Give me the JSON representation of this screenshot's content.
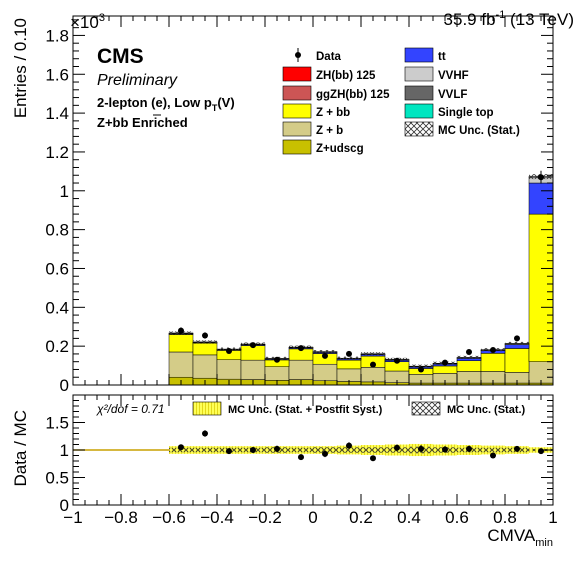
{
  "header": {
    "lumi": "35.9 fb",
    "lumi_sup": "-1",
    "energy": " (13 TeV)",
    "exponent_base": "×10",
    "exponent_power": "3"
  },
  "labels": {
    "cms": "CMS",
    "preliminary": "Preliminary",
    "channel_main": "2-lepton (e), Low p",
    "channel_sub": "T",
    "channel_tail": "(V)",
    "region": "Z+bb Enriched",
    "chi2_text": "χ²/dof = 0.71"
  },
  "colors": {
    "zh": "#ff0000",
    "ggzh": "#cc5555",
    "zbb": "#ffff00",
    "zb": "#d4cc88",
    "zudscg": "#c8c000",
    "ttbar": "#3344ff",
    "vvhf": "#cccccc",
    "vvlf": "#666666",
    "singletop": "#00e6c0",
    "band_yellow": "#ffff66"
  },
  "chart_data": [
    {
      "type": "bar",
      "subtype": "stacked histogram with data points",
      "xlabel": "CMVA",
      "xlabel_sub": "min",
      "ylabel": "Entries / 0.10",
      "xlim": [
        -1,
        1
      ],
      "ylim": [
        0,
        1900
      ],
      "y_unit_multiplier": 1000,
      "x_ticks": [
        "−1",
        "−0.8",
        "−0.6",
        "−0.4",
        "−0.2",
        "0",
        "0.2",
        "0.4",
        "0.6",
        "0.8",
        "1"
      ],
      "y_ticks": [
        "0",
        "0.2",
        "0.4",
        "0.6",
        "0.8",
        "1",
        "1.2",
        "1.4",
        "1.6",
        "1.8"
      ],
      "bin_edges": [
        -0.6,
        -0.5,
        -0.4,
        -0.3,
        -0.2,
        -0.1,
        0.0,
        0.1,
        0.2,
        0.3,
        0.4,
        0.5,
        0.6,
        0.7,
        0.8,
        0.9,
        1.0
      ],
      "stack_order": [
        "Z+udscg",
        "Z + b",
        "Z + bb",
        "tt",
        "VVHF",
        "VVLF",
        "Single top",
        "ZH(bb) 125",
        "ggZH(bb) 125"
      ],
      "series": [
        {
          "name": "Z+udscg",
          "color": "#c8c000",
          "values": [
            40,
            35,
            30,
            28,
            24,
            28,
            22,
            18,
            16,
            12,
            10,
            10,
            10,
            10,
            10,
            10
          ]
        },
        {
          "name": "Z + b",
          "color": "#d4cc88",
          "values": [
            130,
            120,
            100,
            100,
            70,
            100,
            85,
            65,
            75,
            60,
            45,
            50,
            60,
            60,
            55,
            110
          ]
        },
        {
          "name": "Z + bb",
          "color": "#ffff00",
          "values": [
            90,
            60,
            48,
            75,
            35,
            58,
            55,
            45,
            58,
            48,
            30,
            38,
            55,
            93,
            123,
            760
          ]
        },
        {
          "name": "tt",
          "color": "#3344ff",
          "values": [
            3,
            3,
            3,
            4,
            4,
            5,
            6,
            6,
            8,
            8,
            8,
            10,
            12,
            14,
            20,
            160
          ]
        },
        {
          "name": "VVHF",
          "color": "#cccccc",
          "values": [
            2,
            2,
            2,
            2,
            2,
            2,
            2,
            2,
            2,
            2,
            2,
            2,
            3,
            3,
            4,
            30
          ]
        },
        {
          "name": "VVLF",
          "color": "#666666",
          "values": [
            3,
            2,
            2,
            2,
            2,
            2,
            2,
            2,
            2,
            2,
            2,
            2,
            2,
            2,
            2,
            2
          ]
        },
        {
          "name": "Single top",
          "color": "#00e6c0",
          "values": [
            0,
            0,
            0,
            0,
            0,
            0,
            0,
            0,
            0,
            0,
            0,
            0,
            0,
            0,
            0,
            0
          ]
        },
        {
          "name": "ZH(bb) 125",
          "color": "#ff0000",
          "values": [
            0,
            0,
            0,
            0,
            0,
            0,
            0,
            0,
            0,
            0,
            0,
            0,
            0,
            0,
            0,
            1
          ]
        },
        {
          "name": "ggZH(bb) 125",
          "color": "#cc5555",
          "values": [
            0,
            0,
            0,
            0,
            0,
            0,
            0,
            0,
            0,
            0,
            0,
            0,
            0,
            0,
            0,
            0
          ]
        }
      ],
      "data_points": {
        "name": "Data",
        "x": [
          -0.55,
          -0.45,
          -0.35,
          -0.25,
          -0.15,
          -0.05,
          0.05,
          0.15,
          0.25,
          0.35,
          0.45,
          0.55,
          0.65,
          0.75,
          0.85,
          0.95
        ],
        "y": [
          280,
          255,
          175,
          205,
          130,
          190,
          150,
          160,
          105,
          125,
          80,
          115,
          170,
          180,
          240,
          1070
        ],
        "err": [
          17,
          16,
          13,
          14,
          11,
          14,
          12,
          13,
          10,
          11,
          9,
          11,
          13,
          13,
          15,
          33
        ]
      },
      "legend": [
        {
          "label": "Data",
          "kind": "marker"
        },
        {
          "label": "ZH(bb) 125",
          "kind": "fill",
          "color": "#ff0000"
        },
        {
          "label": "ggZH(bb) 125",
          "kind": "fill",
          "color": "#cc5555"
        },
        {
          "label": "Z + bb",
          "kind": "fill",
          "color": "#ffff00"
        },
        {
          "label": "Z + b",
          "kind": "fill",
          "color": "#d4cc88"
        },
        {
          "label": "Z+udscg",
          "kind": "fill",
          "color": "#c8c000"
        },
        {
          "label": "tt",
          "kind": "fill",
          "color": "#3344ff"
        },
        {
          "label": "VVHF",
          "kind": "fill",
          "color": "#cccccc"
        },
        {
          "label": "VVLF",
          "kind": "fill",
          "color": "#666666"
        },
        {
          "label": "Single top",
          "kind": "fill",
          "color": "#00e6c0"
        },
        {
          "label": "MC Unc. (Stat.)",
          "kind": "hatch"
        }
      ],
      "legend_placement": "top-right"
    },
    {
      "type": "scatter",
      "subtype": "ratio panel",
      "xlabel": "CMVA",
      "xlabel_sub": "min",
      "ylabel": "Data / MC",
      "xlim": [
        -1,
        1
      ],
      "ylim": [
        0,
        2
      ],
      "x_ticks": [
        "−1",
        "−0.8",
        "−0.6",
        "−0.4",
        "−0.2",
        "0",
        "0.2",
        "0.4",
        "0.6",
        "0.8",
        "1"
      ],
      "y_ticks": [
        "0",
        "0.5",
        "1",
        "1.5"
      ],
      "reference_line": 1,
      "ratio": {
        "x": [
          -0.55,
          -0.45,
          -0.35,
          -0.25,
          -0.15,
          -0.05,
          0.05,
          0.15,
          0.25,
          0.35,
          0.45,
          0.55,
          0.65,
          0.75,
          0.85,
          0.95
        ],
        "y": [
          1.05,
          1.3,
          0.98,
          1.0,
          1.02,
          0.87,
          0.93,
          1.08,
          0.85,
          1.04,
          1.02,
          1.01,
          1.02,
          0.9,
          1.02,
          0.98
        ],
        "err": [
          0.05,
          0.06,
          0.05,
          0.05,
          0.06,
          0.05,
          0.06,
          0.06,
          0.05,
          0.06,
          0.07,
          0.06,
          0.06,
          0.05,
          0.05,
          0.02
        ]
      },
      "syst_band_halfwidth": [
        0.07,
        0.07,
        0.07,
        0.07,
        0.07,
        0.07,
        0.07,
        0.08,
        0.09,
        0.1,
        0.11,
        0.1,
        0.09,
        0.08,
        0.07,
        0.05
      ],
      "stat_band_halfwidth": [
        0.04,
        0.04,
        0.04,
        0.04,
        0.05,
        0.04,
        0.05,
        0.05,
        0.05,
        0.05,
        0.06,
        0.05,
        0.04,
        0.04,
        0.04,
        0.02
      ],
      "legend": [
        {
          "label": "MC Unc. (Stat. + Postfit Syst.)",
          "kind": "yellow-band"
        },
        {
          "label": "MC Unc. (Stat.)",
          "kind": "hatch"
        }
      ]
    }
  ]
}
